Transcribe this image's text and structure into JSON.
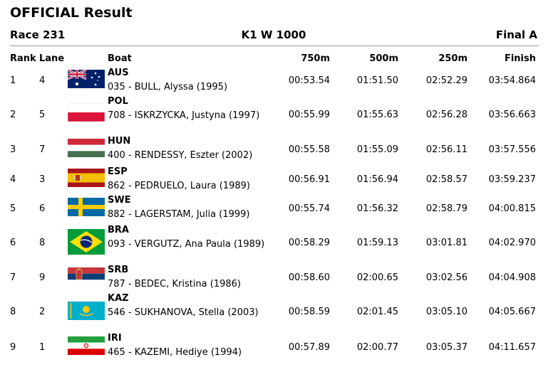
{
  "header": {
    "title": "OFFICIAL Result",
    "race": "Race 231",
    "event": "K1 W 1000",
    "phase": "Final A"
  },
  "columns": {
    "rank": "Rank",
    "lane": "Lane",
    "boat": "Boat",
    "split1": "750m",
    "split2": "500m",
    "split3": "250m",
    "finish": "Finish"
  },
  "rows": [
    {
      "rank": "1",
      "lane": "4",
      "code": "AUS",
      "name": "035 - BULL, Alyssa (1995)",
      "t750": "00:53.54",
      "t500": "01:51.50",
      "t250": "02:52.29",
      "finish": "03:54.864",
      "flag": "australia-flag-icon"
    },
    {
      "rank": "2",
      "lane": "5",
      "code": "POL",
      "name": "708 - ISKRZYCKA, Justyna (1997)",
      "t750": "00:55.99",
      "t500": "01:55.63",
      "t250": "02:56.28",
      "finish": "03:56.663",
      "flag": "poland-flag-icon"
    },
    {
      "rank": "3",
      "lane": "7",
      "code": "HUN",
      "name": "400 - RENDESSY, Eszter (2002)",
      "t750": "00:55.58",
      "t500": "01:55.09",
      "t250": "02:56.11",
      "finish": "03:57.556",
      "flag": "hungary-flag-icon"
    },
    {
      "rank": "4",
      "lane": "3",
      "code": "ESP",
      "name": "862 - PEDRUELO, Laura (1989)",
      "t750": "00:56.91",
      "t500": "01:56.94",
      "t250": "02:58.57",
      "finish": "03:59.237",
      "flag": "spain-flag-icon"
    },
    {
      "rank": "5",
      "lane": "6",
      "code": "SWE",
      "name": "882 - LAGERSTAM, Julia (1999)",
      "t750": "00:55.74",
      "t500": "01:56.32",
      "t250": "02:58.79",
      "finish": "04:00.815",
      "flag": "sweden-flag-icon"
    },
    {
      "rank": "6",
      "lane": "8",
      "code": "BRA",
      "name": "093 - VERGUTZ, Ana Paula (1989)",
      "t750": "00:58.29",
      "t500": "01:59.13",
      "t250": "03:01.81",
      "finish": "04:02.970",
      "flag": "brazil-flag-icon"
    },
    {
      "rank": "7",
      "lane": "9",
      "code": "SRB",
      "name": "787 - BEDEC, Kristina (1986)",
      "t750": "00:58.60",
      "t500": "02:00.65",
      "t250": "03:02.56",
      "finish": "04:04.908",
      "flag": "serbia-flag-icon"
    },
    {
      "rank": "8",
      "lane": "2",
      "code": "KAZ",
      "name": "546 - SUKHANOVA, Stella (2003)",
      "t750": "00:58.59",
      "t500": "02:01.45",
      "t250": "03:05.10",
      "finish": "04:05.667",
      "flag": "kazakhstan-flag-icon"
    },
    {
      "rank": "9",
      "lane": "1",
      "code": "IRI",
      "name": "465 - KAZEMI, Hediye (1994)",
      "t750": "00:57.89",
      "t500": "02:00.77",
      "t250": "03:05.37",
      "finish": "04:11.657",
      "flag": "iran-flag-icon"
    }
  ]
}
